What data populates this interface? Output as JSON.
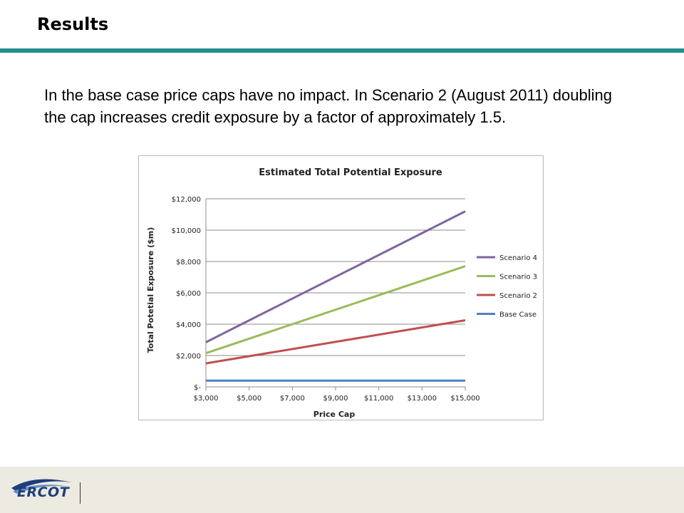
{
  "slide": {
    "title": "Results",
    "body": "In the base case price caps have no impact.  In Scenario 2 (August 2011) doubling the cap increases credit exposure by a factor of approximately 1.5."
  },
  "footer": {
    "logo_text": "ERCOT"
  },
  "colors": {
    "title_rule": "#1f8f8a",
    "footer_band": "#eceae1",
    "logo": "#1d3f7a"
  },
  "chart_data": {
    "type": "line",
    "title": "Estimated Total Potential Exposure",
    "xlabel": "Price Cap",
    "ylabel": "Total Potetial Exposure ($m)",
    "x_ticks": [
      3000,
      5000,
      7000,
      9000,
      11000,
      13000,
      15000
    ],
    "x_tick_labels": [
      "$3,000",
      "$5,000",
      "$7,000",
      "$9,000",
      "$11,000",
      "$13,000",
      "$15,000"
    ],
    "y_ticks": [
      0,
      2000,
      4000,
      6000,
      8000,
      10000,
      12000
    ],
    "y_tick_labels": [
      "$-",
      "$2,000",
      "$4,000",
      "$6,000",
      "$8,000",
      "$10,000",
      "$12,000"
    ],
    "xlim": [
      3000,
      15000
    ],
    "ylim": [
      0,
      12000
    ],
    "grid": "horizontal",
    "legend_position": "right",
    "series": [
      {
        "name": "Scenario 4",
        "color": "#8064a2",
        "x": [
          3000,
          15000
        ],
        "y": [
          2850,
          11200
        ]
      },
      {
        "name": "Scenario 3",
        "color": "#9bbb59",
        "x": [
          3000,
          15000
        ],
        "y": [
          2150,
          7700
        ]
      },
      {
        "name": "Scenario 2",
        "color": "#c0504d",
        "x": [
          3000,
          15000
        ],
        "y": [
          1500,
          4250
        ]
      },
      {
        "name": "Base Case",
        "color": "#4f81bd",
        "x": [
          3000,
          15000
        ],
        "y": [
          400,
          400
        ]
      }
    ]
  }
}
